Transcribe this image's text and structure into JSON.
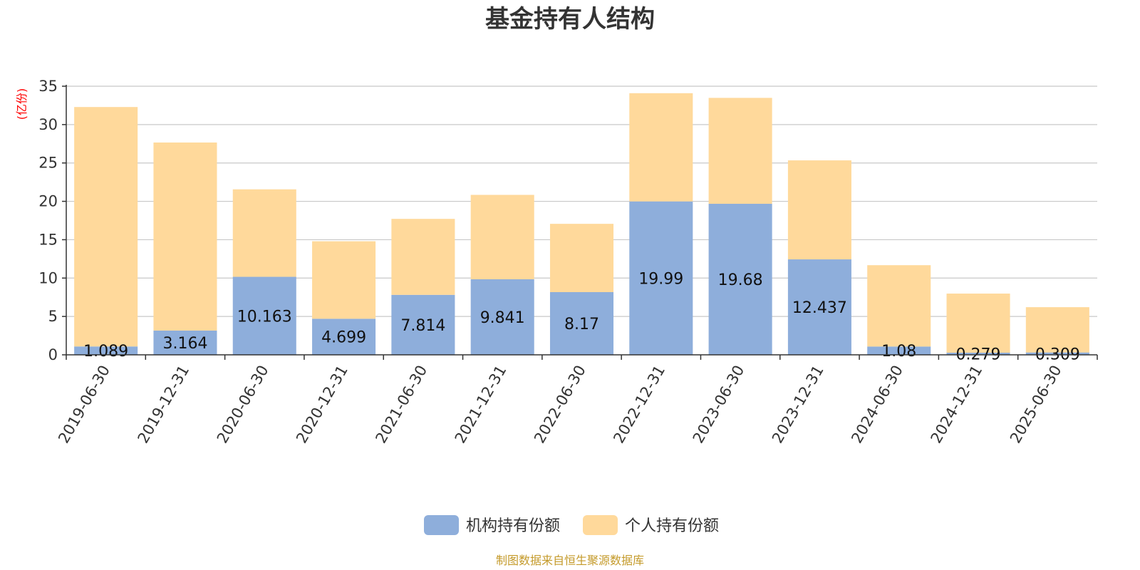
{
  "colors": {
    "institutional": "#8eaedb",
    "individual": "#ffd99b",
    "unit": "#ff0000",
    "source": "#c49a2a",
    "grid": "#c8c8c8",
    "axis": "#333333"
  },
  "chart_data": {
    "type": "bar",
    "stacked": true,
    "title": "基金持有人结构",
    "unit_label": "(亿份)",
    "ylim": [
      0,
      35
    ],
    "yticks": [
      0,
      5,
      10,
      15,
      20,
      25,
      30,
      35
    ],
    "grid": true,
    "legend_position": "bottom",
    "categories": [
      "2019-06-30",
      "2019-12-31",
      "2020-06-30",
      "2020-12-31",
      "2021-06-30",
      "2021-12-31",
      "2022-06-30",
      "2022-12-31",
      "2023-06-30",
      "2023-12-31",
      "2024-06-30",
      "2024-12-31",
      "2025-06-30"
    ],
    "series": [
      {
        "name": "机构持有份额",
        "color_key": "institutional",
        "values": [
          1.089,
          3.164,
          10.163,
          4.699,
          7.814,
          9.841,
          8.17,
          19.99,
          19.68,
          12.437,
          1.08,
          0.279,
          0.309
        ],
        "labels": [
          "1.089",
          "3.164",
          "10.163",
          "4.699",
          "7.814",
          "9.841",
          "8.17",
          "19.99",
          "19.68",
          "12.437",
          "1.08",
          "0.279",
          "0.309"
        ]
      },
      {
        "name": "个人持有份额",
        "color_key": "individual",
        "values": [
          31.2,
          24.5,
          11.4,
          10.1,
          9.9,
          11.0,
          8.9,
          14.1,
          13.8,
          12.9,
          10.6,
          7.7,
          5.9
        ]
      }
    ],
    "source": "制图数据来自恒生聚源数据库"
  }
}
